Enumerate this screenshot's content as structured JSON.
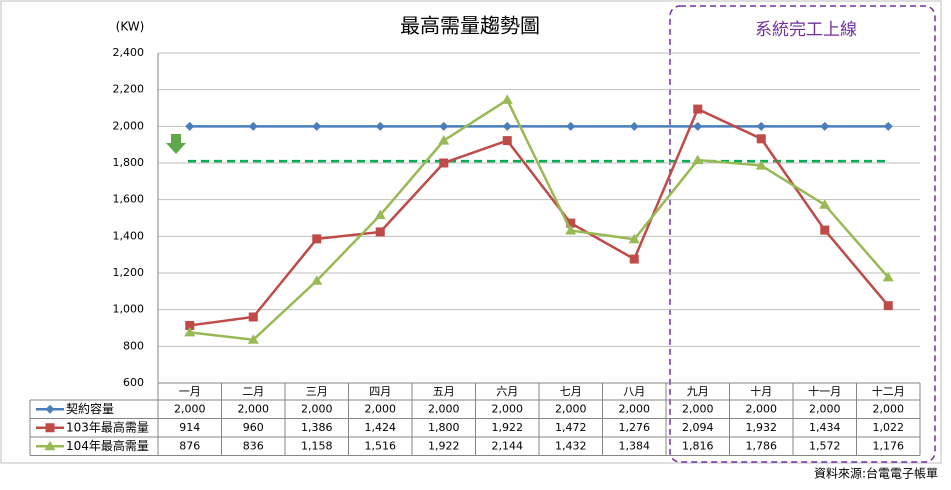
{
  "chart_data": {
    "type": "line",
    "title": "最高需量趨勢圖",
    "y_label": "(KW)",
    "annotation": "系統完工上線",
    "source": "資料來源:台電電子帳單",
    "categories": [
      "一月",
      "二月",
      "三月",
      "四月",
      "五月",
      "六月",
      "七月",
      "八月",
      "九月",
      "十月",
      "十一月",
      "十二月"
    ],
    "series": [
      {
        "name": "契約容量",
        "color": "#4a7ebb",
        "marker": "diamond",
        "values": [
          2000,
          2000,
          2000,
          2000,
          2000,
          2000,
          2000,
          2000,
          2000,
          2000,
          2000,
          2000
        ],
        "value_labels": [
          "2,000",
          "2,000",
          "2,000",
          "2,000",
          "2,000",
          "2,000",
          "2,000",
          "2,000",
          "2,000",
          "2,000",
          "2,000",
          "2,000"
        ]
      },
      {
        "name": "103年最高需量",
        "color": "#be4b48",
        "marker": "square",
        "values": [
          914,
          960,
          1386,
          1424,
          1800,
          1922,
          1472,
          1276,
          2094,
          1932,
          1434,
          1022
        ],
        "value_labels": [
          "914",
          "960",
          "1,386",
          "1,424",
          "1,800",
          "1,922",
          "1,472",
          "1,276",
          "2,094",
          "1,932",
          "1,434",
          "1,022"
        ]
      },
      {
        "name": "104年最高需量",
        "color": "#98b954",
        "marker": "triangle",
        "values": [
          876,
          836,
          1158,
          1516,
          1922,
          2144,
          1432,
          1384,
          1816,
          1786,
          1572,
          1176
        ],
        "value_labels": [
          "876",
          "836",
          "1,158",
          "1,516",
          "1,922",
          "2,144",
          "1,432",
          "1,384",
          "1,816",
          "1,786",
          "1,572",
          "1,176"
        ]
      }
    ],
    "reference_line": {
      "value": 1810,
      "color": "#00b050",
      "dashed": true
    },
    "ylim": [
      600,
      2400
    ],
    "yticks": [
      600,
      800,
      {
        "value": 1000,
        "label": "1,000"
      },
      {
        "value": 1200,
        "label": "1,200"
      },
      {
        "value": 1400,
        "label": "1,400"
      },
      {
        "value": 1600,
        "label": "1,600"
      },
      {
        "value": 1800,
        "label": "1,800"
      },
      {
        "value": 2000,
        "label": "2,000"
      },
      {
        "value": 2200,
        "label": "2,200"
      },
      {
        "value": 2400,
        "label": "2,400"
      }
    ],
    "grid": true
  }
}
